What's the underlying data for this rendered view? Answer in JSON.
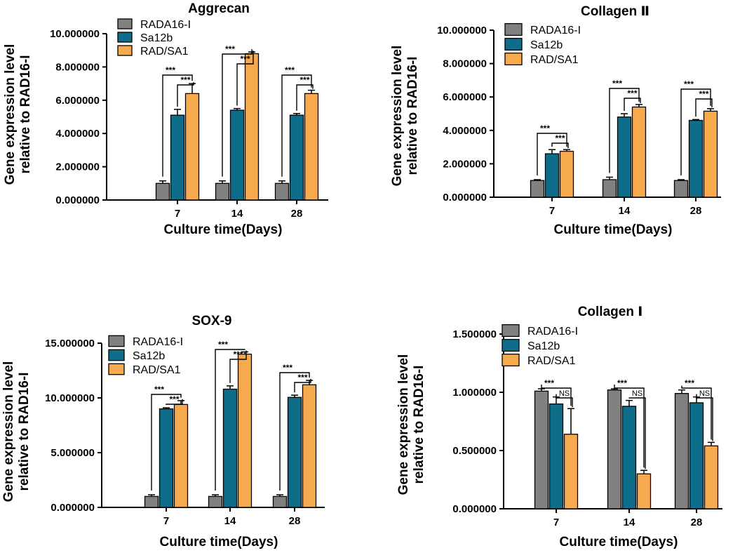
{
  "colors": {
    "RADA16-I": "#808080",
    "Sa12b": "#0e6e8a",
    "RAD/SA1": "#f7a94d",
    "axis": "#000000"
  },
  "chart_data": [
    {
      "type": "bar",
      "title": "Aggrecan",
      "xlabel": "Culture time(Days)",
      "ylabel": [
        "Gene expression level",
        "relative to RAD16-I"
      ],
      "categories": [
        "7",
        "14",
        "28"
      ],
      "ylim": [
        0,
        10
      ],
      "yticks": [
        0,
        2,
        4,
        6,
        8,
        10
      ],
      "ytick_labels": [
        "0.000000",
        "2.000000",
        "4.000000",
        "6.000000",
        "8.000000",
        "10.000000"
      ],
      "series": [
        {
          "name": "RADA16-I",
          "values": [
            1.0,
            1.0,
            1.0
          ],
          "errors": [
            0.15,
            0.15,
            0.15
          ]
        },
        {
          "name": "Sa12b",
          "values": [
            5.1,
            5.4,
            5.1
          ],
          "errors": [
            0.35,
            0.1,
            0.1
          ]
        },
        {
          "name": "RAD/SA1",
          "values": [
            6.4,
            8.8,
            6.4
          ],
          "errors": [
            0.6,
            0.1,
            0.2
          ]
        }
      ],
      "significance": [
        [
          "***",
          "***"
        ],
        [
          "***",
          "***"
        ],
        [
          "***",
          "***"
        ]
      ]
    },
    {
      "type": "bar",
      "title": "Collagen Ⅱ",
      "xlabel": "Culture time(Days)",
      "ylabel": [
        "Gene expression level",
        "relative to RAD16-I"
      ],
      "categories": [
        "7",
        "14",
        "28"
      ],
      "ylim": [
        0,
        10
      ],
      "yticks": [
        0,
        2,
        4,
        6,
        8,
        10
      ],
      "ytick_labels": [
        "0.000000",
        "2.000000",
        "4.000000",
        "6.000000",
        "8.000000",
        "10.000000"
      ],
      "series": [
        {
          "name": "RADA16-I",
          "values": [
            1.0,
            1.05,
            1.0
          ],
          "errors": [
            0.05,
            0.15,
            0.05
          ]
        },
        {
          "name": "Sa12b",
          "values": [
            2.6,
            4.8,
            4.6
          ],
          "errors": [
            0.25,
            0.2,
            0.05
          ]
        },
        {
          "name": "RAD/SA1",
          "values": [
            2.75,
            5.4,
            5.15
          ],
          "errors": [
            0.1,
            0.15,
            0.15
          ]
        }
      ],
      "significance": [
        [
          "***",
          "***"
        ],
        [
          "***",
          "***"
        ],
        [
          "***",
          "***"
        ]
      ]
    },
    {
      "type": "bar",
      "title": "SOX-9",
      "xlabel": "Culture time(Days)",
      "ylabel": [
        "Gene expression level",
        "relative to RAD16-I"
      ],
      "categories": [
        "7",
        "14",
        "28"
      ],
      "ylim": [
        0,
        15
      ],
      "yticks": [
        0,
        5,
        10,
        15
      ],
      "ytick_labels": [
        "0.000000",
        "5.000000",
        "10.000000",
        "15.000000"
      ],
      "series": [
        {
          "name": "RADA16-I",
          "values": [
            1.0,
            1.0,
            1.0
          ],
          "errors": [
            0.15,
            0.15,
            0.15
          ]
        },
        {
          "name": "Sa12b",
          "values": [
            9.0,
            10.8,
            10.05
          ],
          "errors": [
            0.1,
            0.3,
            0.2
          ]
        },
        {
          "name": "RAD/SA1",
          "values": [
            9.4,
            14.0,
            11.2
          ],
          "errors": [
            0.35,
            0.2,
            0.4
          ]
        }
      ],
      "significance": [
        [
          "***",
          "***"
        ],
        [
          "***",
          "***"
        ],
        [
          "***",
          "***"
        ]
      ]
    },
    {
      "type": "bar",
      "title": "Collagen Ⅰ",
      "xlabel": "Culture time(Days)",
      "ylabel": [
        "Gene expression level",
        "relative to RAD16-I"
      ],
      "categories": [
        "7",
        "14",
        "28"
      ],
      "ylim": [
        0,
        1.5
      ],
      "yticks": [
        0,
        0.5,
        1.0,
        1.5
      ],
      "ytick_labels": [
        "0.000000",
        "0.500000",
        "1.000000",
        "1.500000"
      ],
      "series": [
        {
          "name": "RADA16-I",
          "values": [
            1.01,
            1.02,
            0.99
          ],
          "errors": [
            0.02,
            0.01,
            0.03
          ]
        },
        {
          "name": "Sa12b",
          "values": [
            0.9,
            0.88,
            0.91
          ],
          "errors": [
            0.06,
            0.05,
            0.05
          ]
        },
        {
          "name": "RAD/SA1",
          "values": [
            0.64,
            0.3,
            0.54
          ],
          "errors": [
            0.22,
            0.03,
            0.03
          ]
        }
      ],
      "significance": [
        [
          "***",
          "NS"
        ],
        [
          "***",
          "NS"
        ],
        [
          "***",
          "NS"
        ]
      ]
    }
  ]
}
